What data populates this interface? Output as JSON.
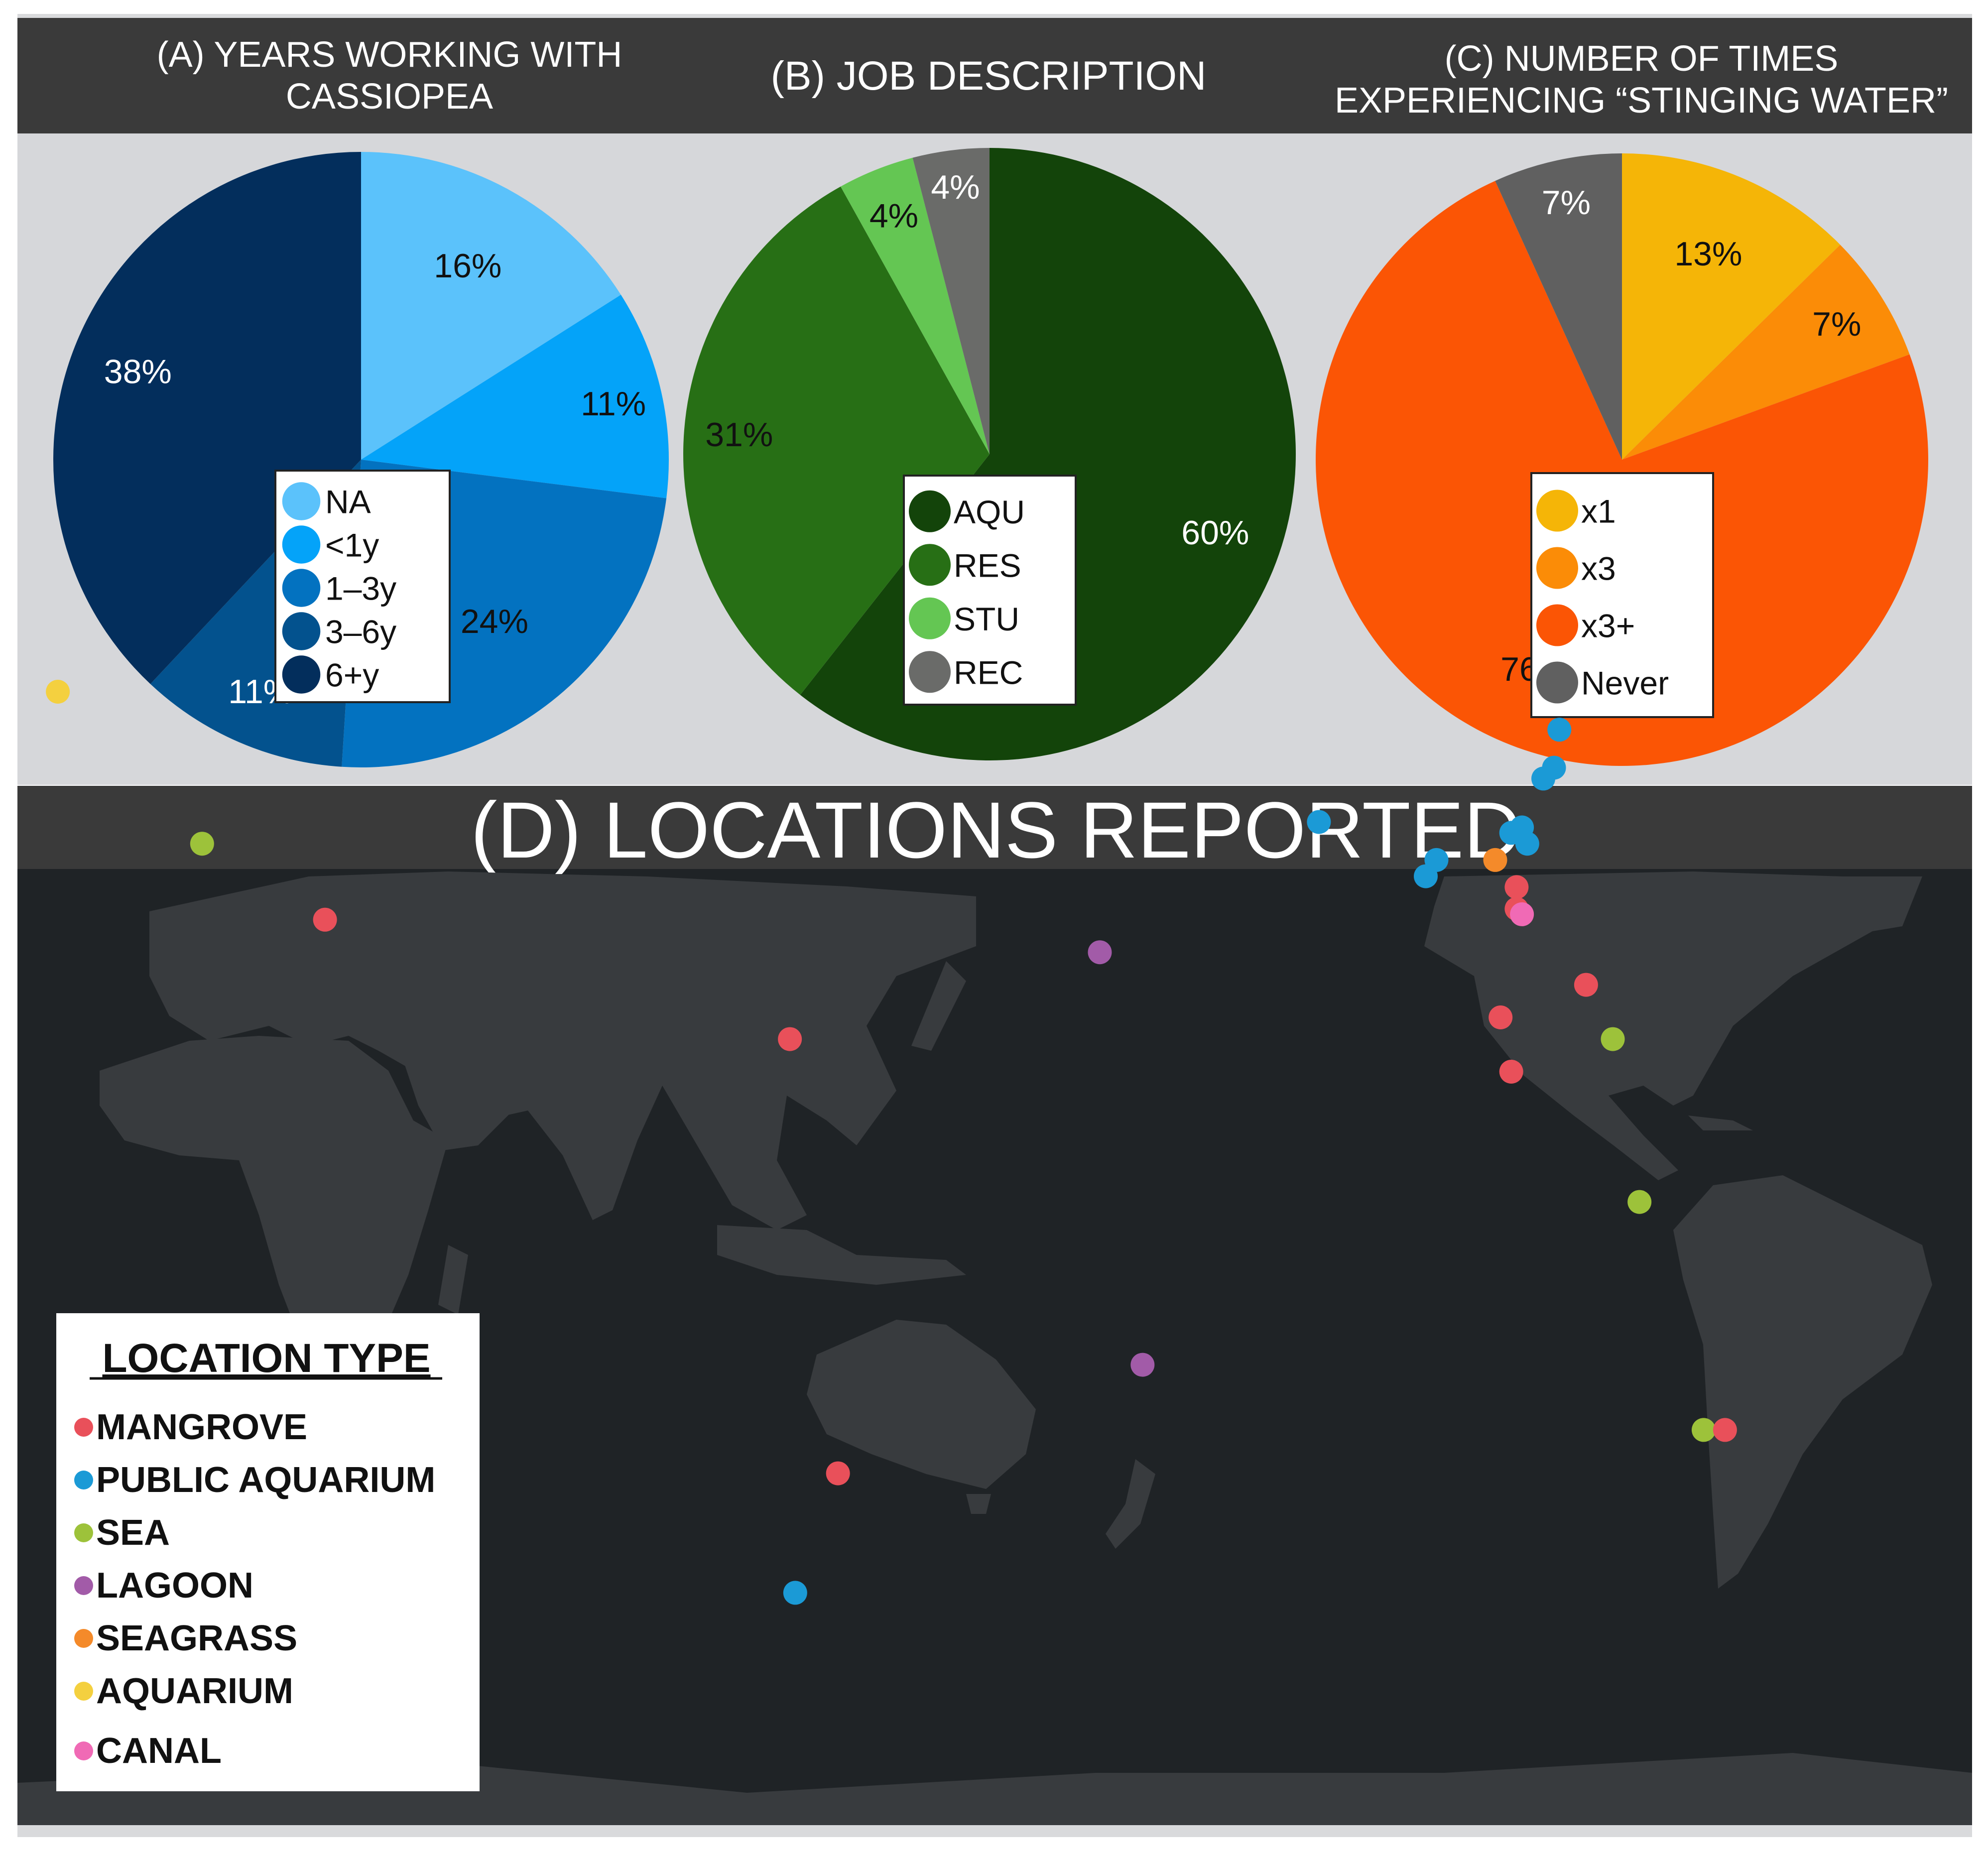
{
  "panels": {
    "a": {
      "title_line1": "(A) YEARS WORKING WITH",
      "title_line2": "CASSIOPEA"
    },
    "b": {
      "title_line1": "(B) JOB DESCRIPTION",
      "title_line2": ""
    },
    "c": {
      "title_line1": "(C) NUMBER OF TIMES",
      "title_line2": "EXPERIENCING “STINGING WATER”"
    },
    "d": {
      "title": "(D) LOCATIONS REPORTED"
    }
  },
  "chart_data": [
    {
      "type": "pie",
      "title": "(A) YEARS WORKING WITH CASSIOPEA",
      "slices": [
        {
          "label": "NA",
          "value": 16,
          "display": "16%",
          "color": "#5bc2fb"
        },
        {
          "label": "<1y",
          "value": 11,
          "display": "11%",
          "color": "#04a3f9"
        },
        {
          "label": "1–3y",
          "value": 24,
          "display": "24%",
          "color": "#0372c0"
        },
        {
          "label": "3–6y",
          "value": 11,
          "display": "11%",
          "color": "#03528e"
        },
        {
          "label": "6+y",
          "value": 38,
          "display": "38%",
          "color": "#032e5c"
        }
      ],
      "legend_position": "center"
    },
    {
      "type": "pie",
      "title": "(B) JOB DESCRIPTION",
      "slices": [
        {
          "label": "AQU",
          "value": 60,
          "display": "60%",
          "color": "#13440a"
        },
        {
          "label": "RES",
          "value": 31,
          "display": "31%",
          "color": "#276f15"
        },
        {
          "label": "STU",
          "value": 4,
          "display": "4%",
          "color": "#64c653"
        },
        {
          "label": "REC",
          "value": 4,
          "display": "4%",
          "color": "#6a6b69"
        }
      ],
      "legend_position": "center"
    },
    {
      "type": "pie",
      "title": "(C) NUMBER OF TIMES EXPERIENCING “STINGING WATER”",
      "slices": [
        {
          "label": "x1",
          "value": 13,
          "display": "13%",
          "color": "#f5b507"
        },
        {
          "label": "x3",
          "value": 7,
          "display": "7%",
          "color": "#fb8c07"
        },
        {
          "label": "x3+",
          "value": 76,
          "display": "76%",
          "color": "#fb5505"
        },
        {
          "label": "Never",
          "value": 7,
          "display": "7%",
          "color": "#606060"
        }
      ],
      "legend_position": "center"
    },
    {
      "type": "scatter",
      "title": "(D) LOCATIONS REPORTED",
      "legend_title": "LOCATION TYPE",
      "categories": [
        {
          "label": "MANGROVE",
          "color": "#e9505a"
        },
        {
          "label": "PUBLIC AQUARIUM",
          "color": "#1b9ad6"
        },
        {
          "label": "SEA",
          "color": "#9dc23a"
        },
        {
          "label": "LAGOON",
          "color": "#a25ba8"
        },
        {
          "label": "SEAGRASS",
          "color": "#f48a2a"
        },
        {
          "label": "AQUARIUM",
          "color": "#f4d03f"
        },
        {
          "label": "CANAL",
          "color": "#f06ab5"
        }
      ],
      "points": [
        {
          "type": "AQUARIUM",
          "lon": 7,
          "lat": 45
        },
        {
          "type": "SEA",
          "lon": 34,
          "lat": 31
        },
        {
          "type": "MANGROVE",
          "lon": 57,
          "lat": 24
        },
        {
          "type": "MANGROVE",
          "lon": 144,
          "lat": 13
        },
        {
          "type": "LAGOON",
          "lon": -158,
          "lat": 21
        },
        {
          "type": "LAGOON",
          "lon": -150,
          "lat": -17
        },
        {
          "type": "MANGROVE",
          "lon": 153,
          "lat": -27
        },
        {
          "type": "PUBLIC AQUARIUM",
          "lon": 145,
          "lat": -38
        },
        {
          "type": "PUBLIC AQUARIUM",
          "lon": -117,
          "lat": 33
        },
        {
          "type": "PUBLIC AQUARIUM",
          "lon": -97,
          "lat": 28
        },
        {
          "type": "PUBLIC AQUARIUM",
          "lon": -95,
          "lat": 29.5
        },
        {
          "type": "SEAGRASS",
          "lon": -84,
          "lat": 29.5
        },
        {
          "type": "PUBLIC AQUARIUM",
          "lon": -81,
          "lat": 32
        },
        {
          "type": "PUBLIC AQUARIUM",
          "lon": -79,
          "lat": 32.5
        },
        {
          "type": "PUBLIC AQUARIUM",
          "lon": -78,
          "lat": 31
        },
        {
          "type": "PUBLIC AQUARIUM",
          "lon": -75,
          "lat": 37
        },
        {
          "type": "PUBLIC AQUARIUM",
          "lon": -73,
          "lat": 38
        },
        {
          "type": "PUBLIC AQUARIUM",
          "lon": -72,
          "lat": 41.5
        },
        {
          "type": "MANGROVE",
          "lon": -80,
          "lat": 27
        },
        {
          "type": "MANGROVE",
          "lon": -80,
          "lat": 25
        },
        {
          "type": "CANAL",
          "lon": -79,
          "lat": 24.5
        },
        {
          "type": "MANGROVE",
          "lon": -83,
          "lat": 15
        },
        {
          "type": "MANGROVE",
          "lon": -81,
          "lat": 10
        },
        {
          "type": "MANGROVE",
          "lon": -67,
          "lat": 18
        },
        {
          "type": "SEA",
          "lon": -62,
          "lat": 13
        },
        {
          "type": "SEA",
          "lon": -57,
          "lat": -2
        },
        {
          "type": "SEA",
          "lon": -45,
          "lat": -23
        },
        {
          "type": "MANGROVE",
          "lon": -41,
          "lat": -23
        }
      ]
    }
  ]
}
